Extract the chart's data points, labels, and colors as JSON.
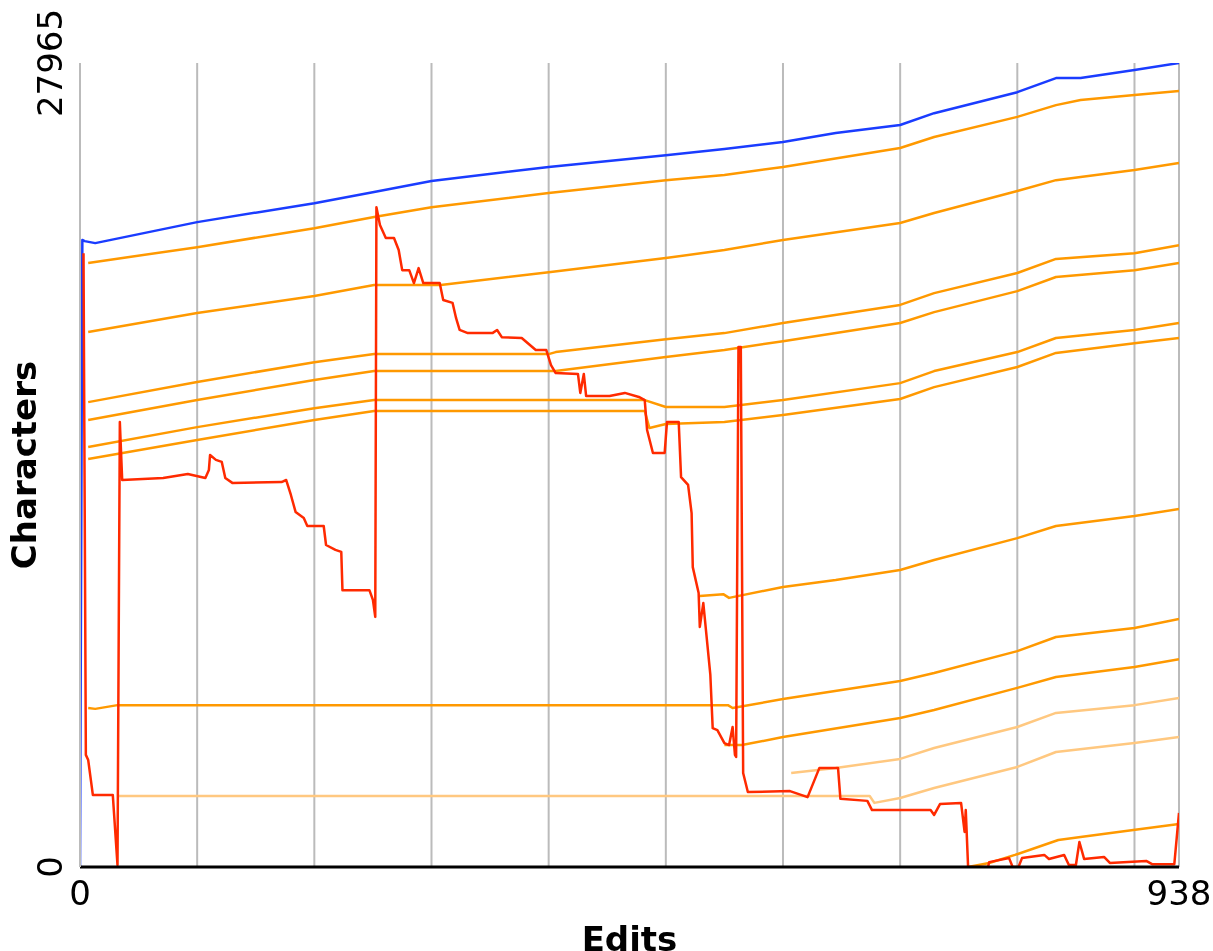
{
  "chart_data": {
    "type": "line",
    "xlabel": "Edits",
    "ylabel": "Characters",
    "xlim": [
      0,
      938
    ],
    "ylim": [
      0,
      27965
    ],
    "xticks": [
      0,
      {
        "value": 100,
        "label": null
      },
      {
        "value": 200,
        "label": null
      },
      {
        "value": 300,
        "label": null
      },
      {
        "value": 400,
        "label": null
      },
      {
        "value": 500,
        "label": null
      },
      {
        "value": 600,
        "label": null
      },
      {
        "value": 700,
        "label": null
      },
      {
        "value": 800,
        "label": null
      },
      {
        "value": 900,
        "label": null
      },
      938
    ],
    "yticks": [
      0,
      27965
    ],
    "grid": "x",
    "series": [
      {
        "color": "#1a3cff",
        "x": [
          0,
          2,
          4,
          13,
          100,
          200,
          251,
          300,
          400,
          500,
          550,
          600,
          645,
          700,
          729,
          800,
          833,
          854,
          900,
          938
        ],
        "values": [
          0,
          21810,
          21770,
          21700,
          22430,
          23090,
          23480,
          23860,
          24350,
          24760,
          24970,
          25220,
          25530,
          25810,
          26220,
          26950,
          27440,
          27440,
          27720,
          27965
        ]
      },
      {
        "color": "#ff9900",
        "x": [
          7,
          100,
          200,
          251,
          300,
          400,
          500,
          550,
          600,
          700,
          729,
          800,
          833,
          854,
          900,
          938
        ],
        "values": [
          21010,
          21560,
          22220,
          22610,
          22950,
          23440,
          23890,
          24070,
          24350,
          25010,
          25390,
          26090,
          26500,
          26680,
          26850,
          26990
        ]
      },
      {
        "color": "#ff9900",
        "x": [
          7,
          100,
          200,
          251,
          308,
          400,
          500,
          550,
          600,
          700,
          729,
          800,
          833,
          854,
          900,
          938
        ],
        "values": [
          18610,
          19270,
          19860,
          20240,
          20240,
          20690,
          21180,
          21460,
          21810,
          22400,
          22750,
          23510,
          23890,
          24000,
          24240,
          24490
        ]
      },
      {
        "color": "#ff9900",
        "x": [
          7,
          100,
          200,
          251,
          400,
          406,
          500,
          550,
          600,
          700,
          729,
          800,
          833,
          900,
          938
        ],
        "values": [
          16170,
          16870,
          17560,
          17840,
          17840,
          17910,
          18360,
          18570,
          18920,
          19550,
          19960,
          20660,
          21150,
          21350,
          21630
        ]
      },
      {
        "color": "#ff9900",
        "x": [
          7,
          100,
          200,
          251,
          406,
          500,
          550,
          600,
          700,
          729,
          800,
          833,
          900,
          938
        ],
        "values": [
          15550,
          16240,
          16940,
          17250,
          17250,
          17740,
          17980,
          18290,
          18920,
          19300,
          20030,
          20520,
          20760,
          21010
        ]
      },
      {
        "color": "#ff9900",
        "x": [
          7,
          100,
          200,
          251,
          482,
          500,
          550,
          600,
          700,
          729,
          800,
          833,
          900,
          938
        ],
        "values": [
          14610,
          15300,
          15960,
          16240,
          16240,
          16000,
          16000,
          16240,
          16830,
          17250,
          17910,
          18400,
          18680,
          18920
        ]
      },
      {
        "color": "#ff9900",
        "x": [
          7,
          100,
          200,
          251,
          482,
          486,
          500,
          550,
          600,
          700,
          729,
          800,
          833,
          900,
          938
        ],
        "values": [
          14190,
          14850,
          15550,
          15860,
          15860,
          15270,
          15410,
          15480,
          15720,
          16280,
          16690,
          17390,
          17880,
          18220,
          18400
        ]
      },
      {
        "color": "#ff9900",
        "x": [
          529,
          549,
          554,
          600,
          645,
          700,
          729,
          800,
          833,
          900,
          938
        ],
        "values": [
          9430,
          9490,
          9360,
          9740,
          9980,
          10330,
          10680,
          11440,
          11860,
          12210,
          12450
        ]
      },
      {
        "color": "#ff9900",
        "x": [
          7,
          13,
          32,
          553,
          557,
          600,
          700,
          729,
          800,
          833,
          900,
          938
        ],
        "values": [
          5530,
          5500,
          5630,
          5630,
          5530,
          5840,
          6470,
          6750,
          7510,
          8000,
          8310,
          8630
        ]
      },
      {
        "color": "#ff9900",
        "x": [
          550,
          565,
          600,
          700,
          729,
          800,
          833,
          900,
          938
        ],
        "values": [
          4240,
          4240,
          4520,
          5180,
          5460,
          6230,
          6610,
          6960,
          7230
        ]
      },
      {
        "color": "#ffc880",
        "x": [
          607,
          645,
          700,
          729,
          800,
          833,
          900,
          938
        ],
        "values": [
          3270,
          3440,
          3760,
          4140,
          4870,
          5360,
          5630,
          5880
        ]
      },
      {
        "color": "#ffc880",
        "x": [
          32,
          674,
          678,
          700,
          729,
          800,
          833,
          900,
          938
        ],
        "values": [
          2470,
          2470,
          2230,
          2400,
          2750,
          3480,
          4000,
          4310,
          4520
        ]
      },
      {
        "color": "#ff9900",
        "x": [
          758,
          776,
          798,
          835,
          854,
          899,
          938
        ],
        "values": [
          0,
          140,
          420,
          940,
          1040,
          1290,
          1500
        ]
      },
      {
        "color": "#ff2a00",
        "x": [
          3,
          5,
          7,
          11,
          28,
          32,
          34,
          36,
          71,
          92,
          107,
          110,
          111,
          116,
          121,
          124,
          130,
          172,
          176,
          180,
          184,
          191,
          194,
          208,
          210,
          218,
          223,
          224,
          247,
          250,
          252,
          253,
          256,
          261,
          268,
          272,
          275,
          281,
          285,
          289,
          293,
          307,
          310,
          318,
          321,
          324,
          331,
          352,
          356,
          360,
          377,
          389,
          398,
          402,
          406,
          425,
          427,
          430,
          432,
          452,
          465,
          477,
          482,
          484,
          489,
          499,
          501,
          511,
          513,
          519,
          522,
          523,
          528,
          529,
          532,
          538,
          540,
          544,
          550,
          554,
          557,
          559,
          560,
          562,
          564,
          566,
          570,
          606,
          621,
          631,
          647,
          649,
          672,
          676,
          726,
          729,
          734,
          752,
          755,
          756,
          758,
          775,
          776,
          793,
          796,
          801,
          804,
          823,
          827,
          840,
          844,
          850,
          853,
          857,
          874,
          879,
          910,
          915,
          934,
          938
        ],
        "values": [
          21350,
          3900,
          3720,
          2500,
          2500,
          70,
          15480,
          13460,
          13530,
          13670,
          13530,
          13810,
          14330,
          14160,
          14090,
          13530,
          13360,
          13390,
          13460,
          12940,
          12350,
          12140,
          11860,
          11860,
          11200,
          11030,
          10960,
          9630,
          9630,
          9290,
          8700,
          22950,
          22330,
          21880,
          21880,
          21460,
          20760,
          20760,
          20310,
          20830,
          20310,
          20310,
          19720,
          19620,
          19090,
          18680,
          18570,
          18570,
          18680,
          18430,
          18400,
          17980,
          17980,
          17460,
          17180,
          17150,
          16490,
          17150,
          16380,
          16380,
          16490,
          16350,
          16240,
          15200,
          14400,
          14400,
          15480,
          15480,
          13560,
          13290,
          12310,
          10430,
          9530,
          8350,
          9180,
          6680,
          4830,
          4760,
          4310,
          4240,
          4870,
          3900,
          3830,
          18090,
          18090,
          3270,
          2610,
          2640,
          2430,
          3440,
          3440,
          2370,
          2300,
          1980,
          1980,
          1810,
          2190,
          2230,
          1220,
          1980,
          0,
          0,
          170,
          310,
          0,
          0,
          310,
          420,
          280,
          420,
          70,
          70,
          870,
          280,
          350,
          140,
          210,
          100,
          100,
          1880
        ]
      }
    ]
  }
}
